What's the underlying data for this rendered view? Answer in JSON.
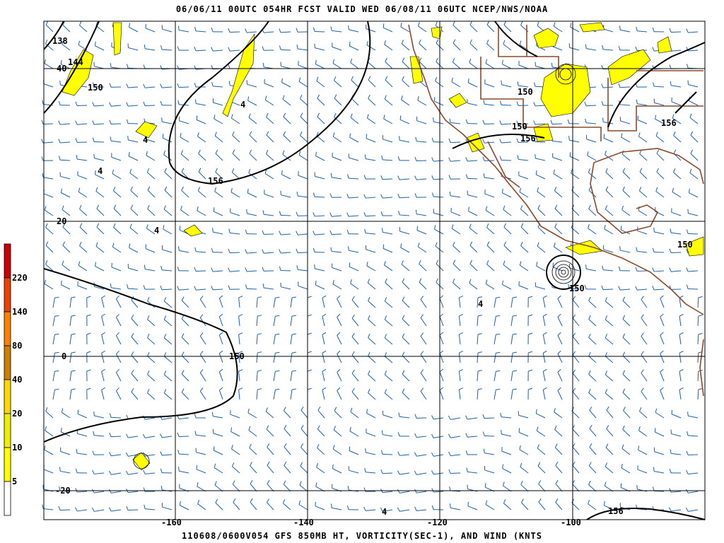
{
  "header": {
    "title": "06/06/11 00UTC  054HR  FCST VALID WED 06/08/11 06UTC  NCEP/NWS/NOAA"
  },
  "footer": {
    "caption": "110608/0600V054 GFS 850MB HT, VORTICITY(SEC-1), AND WIND (KNTS"
  },
  "map": {
    "longitude_labels": [
      "-160",
      "-140",
      "-120",
      "-100"
    ],
    "latitude_labels": [
      "40",
      "20",
      "0",
      "-20"
    ],
    "contour_labels": [
      "138",
      "144",
      "150",
      "150",
      "156",
      "150",
      "150",
      "156",
      "150",
      "150",
      "156",
      "156"
    ],
    "vorticity_labels": [
      "4",
      "4",
      "4",
      "4",
      "4",
      "4"
    ],
    "colors": {
      "grid": "#000000",
      "coast": "#8b4a2b",
      "wind_barbs": "#1f5fa8",
      "contours": "#000000"
    }
  },
  "legend": {
    "labels": [
      "220",
      "140",
      "80",
      "40",
      "20",
      "10",
      "5"
    ],
    "colors": [
      "#cc0000",
      "#ee4000",
      "#ff8000",
      "#cc8000",
      "#ffd700",
      "#eeee00",
      "#ffff00",
      "#ffffff"
    ]
  }
}
